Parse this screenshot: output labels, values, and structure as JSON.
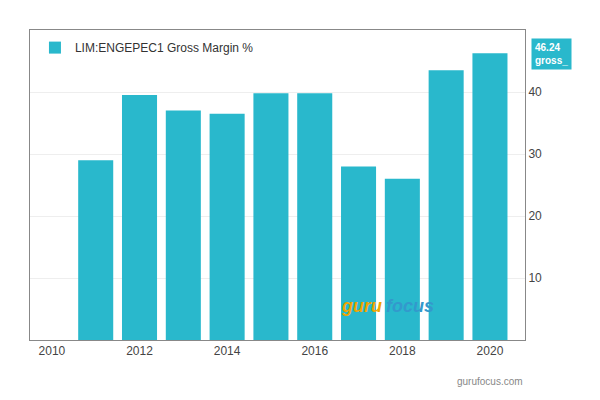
{
  "chart_data": {
    "type": "bar",
    "x": [
      2011,
      2012,
      2013,
      2014,
      2015,
      2016,
      2017,
      2018,
      2019,
      2020
    ],
    "series": [
      {
        "name": "LIM:ENGEPEC1 Gross Margin %",
        "color": "#29b8cc",
        "values": [
          29.0,
          39.5,
          37.0,
          36.5,
          39.8,
          39.8,
          28.0,
          26.0,
          43.5,
          46.24
        ]
      }
    ],
    "xlim": [
      2009.5,
      2020.8
    ],
    "ylim": [
      0,
      50
    ],
    "xticks": [
      2010,
      2012,
      2014,
      2016,
      2018,
      2020
    ],
    "yticks": [
      10,
      20,
      30,
      40
    ],
    "grid": true,
    "legend": "upper left",
    "annotations": [
      "46.24\ngross_",
      "guru",
      "focus",
      "gurufocus.com"
    ]
  }
}
